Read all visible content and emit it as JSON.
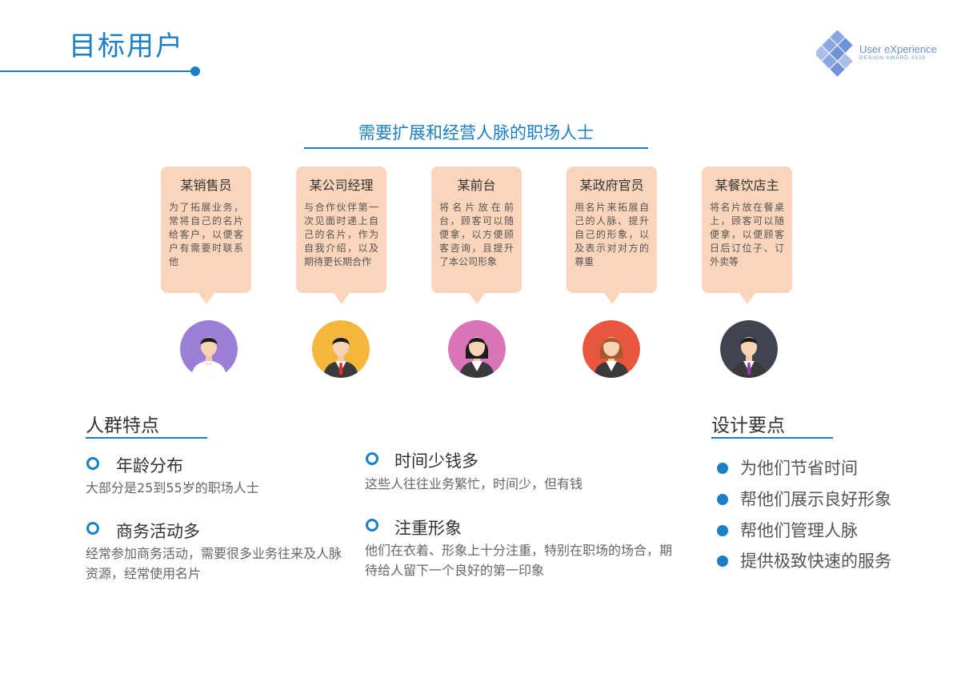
{
  "header": {
    "title": "目标用户"
  },
  "logo": {
    "text": "User eXperience",
    "sub": "DESIGN  AWARD  2015"
  },
  "colors": {
    "accent": "#1a7fc6",
    "card": "#fbd5bb"
  },
  "section": {
    "heading": "需要扩展和经营人脉的职场人士"
  },
  "personas": [
    {
      "name": "某销售员",
      "desc": "为了拓展业务，常将自己的名片给客户，以便客户有需要时联系他",
      "avatar_color": "#9b7fd6",
      "tie_color": "#ffffff"
    },
    {
      "name": "某公司经理",
      "desc": "与合作伙伴第一次见面时递上自己的名片，作为自我介绍，以及期待更长期合作",
      "avatar_color": "#f5b73b",
      "tie_color": "#d9312b"
    },
    {
      "name": "某前台",
      "desc": "将名片放在前台，顾客可以随便拿，以方便顾客咨询，且提升了本公司形象",
      "avatar_color": "#d974b6",
      "tie_color": "#ffffff"
    },
    {
      "name": "某政府官员",
      "desc": "用名片来拓展自己的人脉、提升自己的形象，以及表示对对方的尊重",
      "avatar_color": "#e8563e",
      "tie_color": "#ffffff"
    },
    {
      "name": "某餐饮店主",
      "desc": "将名片放在餐桌上，顾客可以随便拿，以便顾客日后订位子、订外卖等",
      "avatar_color": "#3f4450",
      "tie_color": "#8e3fa6"
    }
  ],
  "characteristics": {
    "heading": "人群特点",
    "items": [
      {
        "title": "年龄分布",
        "desc": "大部分是25到55岁的职场人士"
      },
      {
        "title": "商务活动多",
        "desc": "经常参加商务活动，需要很多业务往来及人脉资源，经常使用名片"
      },
      {
        "title": "时间少钱多",
        "desc": "这些人往往业务繁忙，时间少，但有钱"
      },
      {
        "title": "注重形象",
        "desc": "他们在衣着、形象上十分注重，特别在职场的场合，期待给人留下一个良好的第一印象"
      }
    ]
  },
  "design": {
    "heading": "设计要点",
    "items": [
      "为他们节省时间",
      "帮他们展示良好形象",
      "帮他们管理人脉",
      "提供极致快速的服务"
    ]
  }
}
